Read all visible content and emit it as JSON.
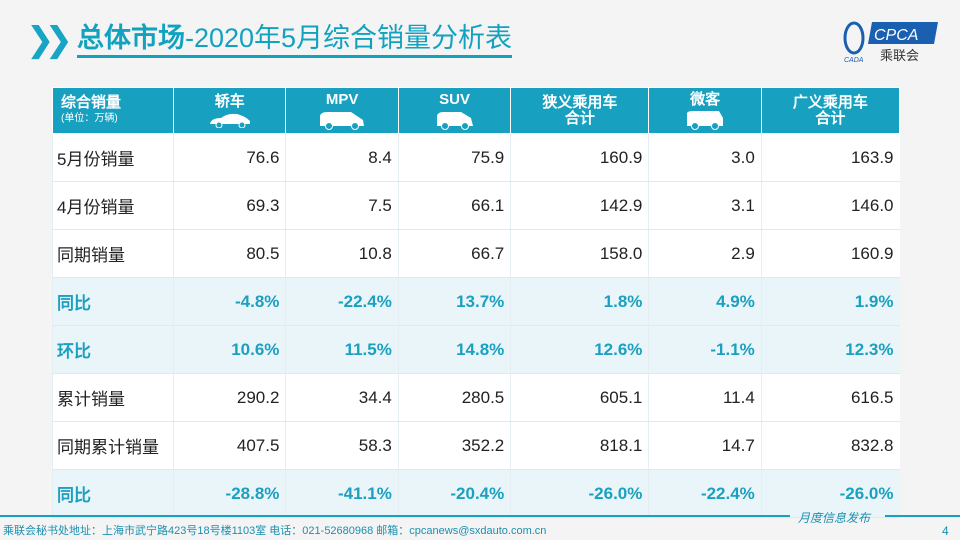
{
  "title": {
    "bold": "总体市场",
    "rest": "-2020年5月综合销量分析表"
  },
  "logo": {
    "text": "CPCA",
    "sub": "乘联会",
    "badge": "CADA"
  },
  "table": {
    "header": {
      "label": "综合销量",
      "unit": "(单位：万辆)"
    },
    "columns": [
      {
        "label": "轿车",
        "icon": "sedan-icon"
      },
      {
        "label": "MPV",
        "icon": "mpv-icon"
      },
      {
        "label": "SUV",
        "icon": "suv-icon"
      },
      {
        "label": "狭义乘用车",
        "label2": "合计"
      },
      {
        "label": "微客",
        "icon": "minivan-icon"
      },
      {
        "label": "广义乘用车",
        "label2": "合计"
      }
    ],
    "rows": [
      {
        "label": "5月份销量",
        "values": [
          "76.6",
          "8.4",
          "75.9",
          "160.9",
          "3.0",
          "163.9"
        ],
        "highlight": false
      },
      {
        "label": "4月份销量",
        "values": [
          "69.3",
          "7.5",
          "66.1",
          "142.9",
          "3.1",
          "146.0"
        ],
        "highlight": false
      },
      {
        "label": "同期销量",
        "values": [
          "80.5",
          "10.8",
          "66.7",
          "158.0",
          "2.9",
          "160.9"
        ],
        "highlight": false
      },
      {
        "label": "同比",
        "values": [
          "-4.8%",
          "-22.4%",
          "13.7%",
          "1.8%",
          "4.9%",
          "1.9%"
        ],
        "highlight": true
      },
      {
        "label": "环比",
        "values": [
          "10.6%",
          "11.5%",
          "14.8%",
          "12.6%",
          "-1.1%",
          "12.3%"
        ],
        "highlight": true
      },
      {
        "label": "累计销量",
        "values": [
          "290.2",
          "34.4",
          "280.5",
          "605.1",
          "11.4",
          "616.5"
        ],
        "highlight": false
      },
      {
        "label": "同期累计销量",
        "values": [
          "407.5",
          "58.3",
          "352.2",
          "818.1",
          "14.7",
          "832.8"
        ],
        "highlight": false
      },
      {
        "label": "同比",
        "values": [
          "-28.8%",
          "-41.1%",
          "-20.4%",
          "-26.0%",
          "-22.4%",
          "-26.0%"
        ],
        "highlight": true
      }
    ]
  },
  "footer": {
    "address": "乘联会秘书处地址：上海市武宁路423号18号楼1103室  电话：021-52680968  邮箱：cpcanews@sxdauto.com.cn",
    "monthly": "月度信息发布",
    "page": "4"
  },
  "colors": {
    "accent": "#17a0bf",
    "highlight_bg": "#eaf5f9"
  }
}
